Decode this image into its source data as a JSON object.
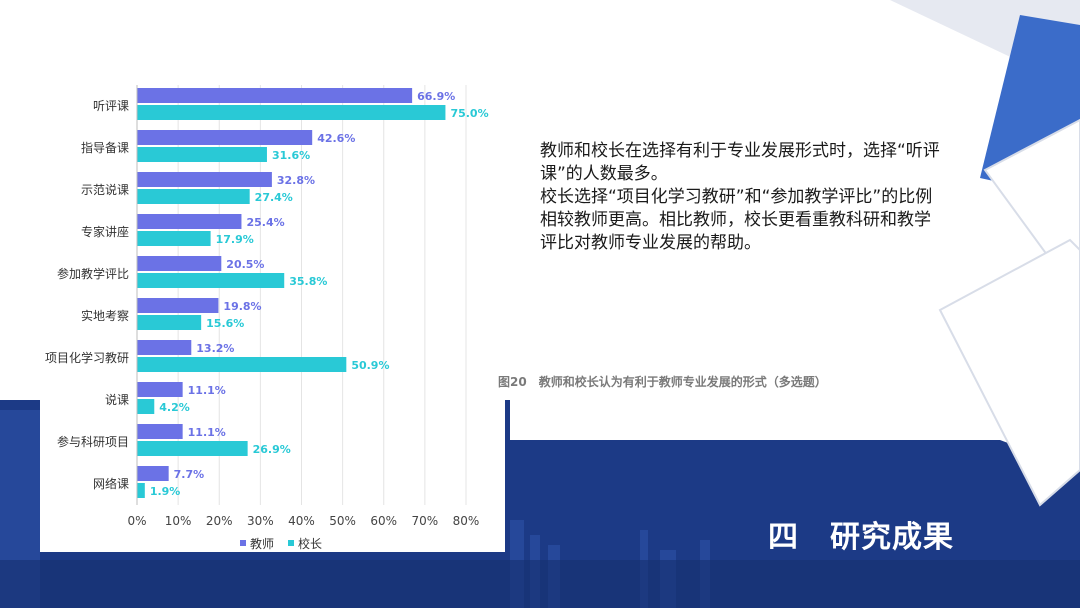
{
  "chart_data": {
    "type": "bar",
    "orientation": "horizontal",
    "categories": [
      "听评课",
      "指导备课",
      "示范说课",
      "专家讲座",
      "参加教学评比",
      "实地考察",
      "项目化学习教研",
      "说课",
      "参与科研项目",
      "网络课"
    ],
    "series": [
      {
        "name": "教师",
        "color": "#6b72e6",
        "values": [
          66.9,
          42.6,
          32.8,
          25.4,
          20.5,
          19.8,
          13.2,
          11.1,
          11.1,
          7.7
        ],
        "labels": [
          "66.9%",
          "42.6%",
          "32.8%",
          "25.4%",
          "20.5%",
          "19.8%",
          "13.2%",
          "11.1%",
          "11.1%",
          "7.7%"
        ]
      },
      {
        "name": "校长",
        "color": "#29c9d6",
        "values": [
          75.0,
          31.6,
          27.4,
          17.9,
          35.8,
          15.6,
          50.9,
          4.2,
          26.9,
          1.9
        ],
        "labels": [
          "75.0%",
          "31.6%",
          "27.4%",
          "17.9%",
          "35.8%",
          "15.6%",
          "50.9%",
          "4.2%",
          "26.9%",
          "1.9%"
        ]
      }
    ],
    "xlim": [
      0,
      80
    ],
    "xticks": [
      0,
      10,
      20,
      30,
      40,
      50,
      60,
      70,
      80
    ],
    "xtick_labels": [
      "0%",
      "10%",
      "20%",
      "30%",
      "40%",
      "50%",
      "60%",
      "70%",
      "80%"
    ],
    "grid": true,
    "legend_position": "bottom"
  },
  "description": {
    "p1": "教师和校长在选择有利于专业发展形式时，选择“听评课”的人数最多。",
    "p2": "校长选择“项目化学习教研”和“参加教学评比”的比例相较教师更高。相比教师，校长更看重教科研和教学评比对教师专业发展的帮助。"
  },
  "caption": "图20　教师和校长认为有利于教师专业发展的形式（多选题）",
  "section_title": "四　研究成果",
  "colors": {
    "navy": "#1f3b8a",
    "blue": "#3568c8",
    "accent_teacher": "#6b72e6",
    "accent_principal": "#29c9d6"
  }
}
